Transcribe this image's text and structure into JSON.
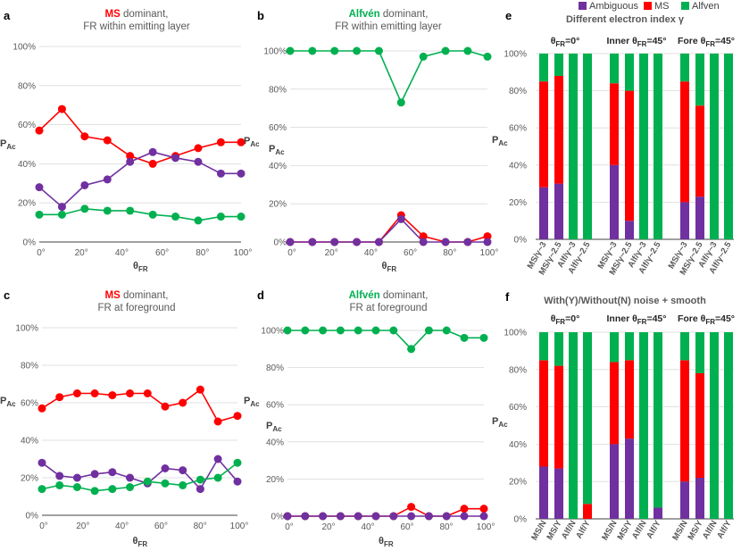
{
  "colors": {
    "ms": "#ff0000",
    "alfven": "#00b050",
    "ambiguous": "#7030a0",
    "axis": "#595959",
    "grid": "#d9d9d9"
  },
  "chart_data": [
    {
      "id": "a",
      "type": "line",
      "panel_letter": "a",
      "title_highlight": "MS",
      "title_rest": "dominant,",
      "subtitle": "FR within emitting layer",
      "xlabel": "θ",
      "xlabel_sub": "FR",
      "ylabel": "P",
      "ylabel_sub": "Ac",
      "ylim": [
        0,
        100
      ],
      "yticks": [
        "0%",
        "20%",
        "40%",
        "60%",
        "80%",
        "100%"
      ],
      "xticks": [
        "0°",
        "20°",
        "40°",
        "60°",
        "80°",
        "100°"
      ],
      "xlim": [
        0,
        100
      ],
      "x": [
        0,
        11.25,
        22.5,
        33.75,
        45,
        56.25,
        67.5,
        78.75,
        90,
        100
      ],
      "series": [
        {
          "key": "ms",
          "values": [
            57,
            68,
            54,
            52,
            44,
            40,
            44,
            48,
            51,
            51
          ]
        },
        {
          "key": "ambiguous",
          "values": [
            28,
            18,
            29,
            32,
            41,
            46,
            43,
            41,
            35,
            35
          ]
        },
        {
          "key": "alfven",
          "values": [
            14,
            14,
            17,
            16,
            16,
            14,
            13,
            11,
            13,
            13
          ]
        }
      ]
    },
    {
      "id": "b",
      "type": "line",
      "panel_letter": "b",
      "title_highlight": "Alfvén",
      "title_rest": "dominant,",
      "subtitle": "FR within emitting layer",
      "xlabel": "θ",
      "xlabel_sub": "FR",
      "ylabel": "P",
      "ylabel_sub": "Ac",
      "ylim": [
        0,
        100
      ],
      "yticks": [
        "0%",
        "20%",
        "40%",
        "60%",
        "80%",
        "100%"
      ],
      "xticks": [
        "0°",
        "20°",
        "40°",
        "60°",
        "80°",
        "100°"
      ],
      "xlim": [
        0,
        100
      ],
      "x": [
        0,
        11.25,
        22.5,
        33.75,
        45,
        56.25,
        67.5,
        78.75,
        90,
        100
      ],
      "series": [
        {
          "key": "alfven",
          "values": [
            100,
            100,
            100,
            100,
            100,
            73,
            97,
            100,
            100,
            97
          ]
        },
        {
          "key": "ms",
          "values": [
            0,
            0,
            0,
            0,
            0,
            14,
            3,
            0,
            0,
            3
          ]
        },
        {
          "key": "ambiguous",
          "values": [
            0,
            0,
            0,
            0,
            0,
            12,
            0,
            0,
            0,
            0
          ]
        }
      ]
    },
    {
      "id": "c",
      "type": "line",
      "panel_letter": "c",
      "title_highlight": "MS",
      "title_rest": "dominant,",
      "subtitle": "FR at foreground",
      "xlabel": "θ",
      "xlabel_sub": "FR",
      "ylabel": "P",
      "ylabel_sub": "Ac",
      "ylim": [
        0,
        100
      ],
      "yticks": [
        "0%",
        "20%",
        "40%",
        "60%",
        "80%",
        "100%"
      ],
      "xticks": [
        "0°",
        "20°",
        "40°",
        "60°",
        "80°",
        "100°"
      ],
      "xlim": [
        0,
        100
      ],
      "x": [
        0,
        9,
        18,
        27,
        36,
        45,
        54,
        63,
        72,
        81,
        90,
        100
      ],
      "series": [
        {
          "key": "ms",
          "values": [
            57,
            63,
            65,
            65,
            64,
            65,
            65,
            58,
            60,
            67,
            50,
            53
          ]
        },
        {
          "key": "ambiguous",
          "values": [
            28,
            21,
            20,
            22,
            23,
            20,
            17,
            25,
            24,
            14,
            30,
            18
          ]
        },
        {
          "key": "alfven",
          "values": [
            14,
            16,
            15,
            13,
            14,
            15,
            18,
            17,
            16,
            19,
            20,
            28
          ]
        }
      ]
    },
    {
      "id": "d",
      "type": "line",
      "panel_letter": "d",
      "title_highlight": "Alfvén",
      "title_rest": "dominant,",
      "subtitle": "FR at foreground",
      "xlabel": "θ",
      "xlabel_sub": "FR",
      "ylabel": "P",
      "ylabel_sub": "Ac",
      "ylim": [
        0,
        100
      ],
      "yticks": [
        "0%",
        "20%",
        "40%",
        "60%",
        "80%",
        "100%"
      ],
      "xticks": [
        "0°",
        "20°",
        "40°",
        "60°",
        "80°",
        "100°"
      ],
      "xlim": [
        0,
        100
      ],
      "x": [
        0,
        9,
        18,
        27,
        36,
        45,
        54,
        63,
        72,
        81,
        90,
        100
      ],
      "series": [
        {
          "key": "alfven",
          "values": [
            100,
            100,
            100,
            100,
            100,
            100,
            100,
            90,
            100,
            100,
            96,
            96
          ]
        },
        {
          "key": "ms",
          "values": [
            0,
            0,
            0,
            0,
            0,
            0,
            0,
            5,
            0,
            0,
            4,
            4
          ]
        },
        {
          "key": "ambiguous",
          "values": [
            0,
            0,
            0,
            0,
            0,
            0,
            0,
            0,
            0,
            0,
            0,
            0
          ]
        }
      ]
    },
    {
      "id": "e",
      "type": "bar",
      "stacked": true,
      "panel_letter": "e",
      "title": "Different electron index γ",
      "legend": [
        {
          "key": "ambiguous",
          "label": "Ambiguous"
        },
        {
          "key": "ms",
          "label": "MS"
        },
        {
          "key": "alfven",
          "label": "Alfven"
        }
      ],
      "ylabel": "P",
      "ylabel_sub": "Ac",
      "ylim": [
        0,
        100
      ],
      "yticks": [
        "0%",
        "20%",
        "40%",
        "60%",
        "80%",
        "100%"
      ],
      "groups": [
        {
          "label_pre": "θ",
          "label_sub": "FR",
          "label_post": "=0°",
          "categories": [
            "MS/γ~3",
            "MS/γ~2.5",
            "Alf/γ~3",
            "Alf/γ~2.5"
          ],
          "ambiguous": [
            28,
            30,
            0,
            0
          ],
          "ms": [
            57,
            58,
            0,
            0
          ],
          "alfven": [
            15,
            12,
            100,
            100
          ]
        },
        {
          "label_pre": "Inner θ",
          "label_sub": "FR",
          "label_post": "=45°",
          "categories": [
            "MS/γ~3",
            "MS/γ~2.5",
            "Alf/γ~3",
            "Alf/γ~2.5"
          ],
          "ambiguous": [
            40,
            10,
            0,
            0
          ],
          "ms": [
            44,
            70,
            0,
            0
          ],
          "alfven": [
            16,
            20,
            100,
            100
          ]
        },
        {
          "label_pre": "Fore θ",
          "label_sub": "FR",
          "label_post": "=45°",
          "categories": [
            "MS/γ~3",
            "MS/γ~2.5",
            "Alf/γ~3",
            "Alf/γ~2.5"
          ],
          "ambiguous": [
            20,
            23,
            0,
            0
          ],
          "ms": [
            65,
            49,
            0,
            0
          ],
          "alfven": [
            15,
            28,
            100,
            100
          ]
        }
      ]
    },
    {
      "id": "f",
      "type": "bar",
      "stacked": true,
      "panel_letter": "f",
      "title": "With(Y)/Without(N) noise + smooth",
      "ylabel": "P",
      "ylabel_sub": "Ac",
      "ylim": [
        0,
        100
      ],
      "yticks": [
        "0%",
        "20%",
        "40%",
        "60%",
        "80%",
        "100%"
      ],
      "groups": [
        {
          "label_pre": "θ",
          "label_sub": "FR",
          "label_post": "=0°",
          "categories": [
            "MS/N",
            "MS/Y",
            "Alf/N",
            "Alf/Y"
          ],
          "ambiguous": [
            28,
            27,
            0,
            0
          ],
          "ms": [
            57,
            55,
            0,
            8
          ],
          "alfven": [
            15,
            18,
            100,
            92
          ]
        },
        {
          "label_pre": "Inner θ",
          "label_sub": "FR",
          "label_post": "=45°",
          "categories": [
            "MS/N",
            "MS/Y",
            "Alf/N",
            "Alf/Y"
          ],
          "ambiguous": [
            40,
            43,
            0,
            6
          ],
          "ms": [
            44,
            42,
            0,
            0
          ],
          "alfven": [
            16,
            15,
            100,
            94
          ]
        },
        {
          "label_pre": "Fore θ",
          "label_sub": "FR",
          "label_post": "=45°",
          "categories": [
            "MS/N",
            "MS/Y",
            "Alf/N",
            "Alf/Y"
          ],
          "ambiguous": [
            20,
            22,
            0,
            0
          ],
          "ms": [
            65,
            56,
            0,
            0
          ],
          "alfven": [
            15,
            22,
            100,
            100
          ]
        }
      ]
    }
  ]
}
